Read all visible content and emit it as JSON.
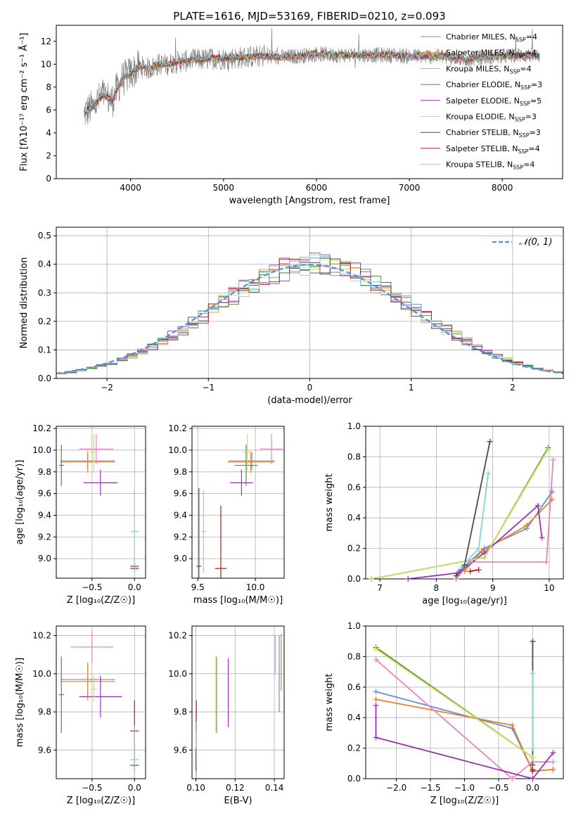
{
  "figure": {
    "title": "PLATE=1616, MJD=53169, FIBERID=0210, z=0.093"
  },
  "models": [
    {
      "name": "Chabrier MILES",
      "nssp": "4",
      "color": "#6a8fd3"
    },
    {
      "name": "Salpeter MILES",
      "nssp": "4",
      "color": "#e9842a"
    },
    {
      "name": "Kroupa MILES",
      "nssp": "4",
      "color": "#e986bf"
    },
    {
      "name": "Chabrier ELODIE",
      "nssp": "3",
      "color": "#4e8f3a"
    },
    {
      "name": "Salpeter ELODIE",
      "nssp": "5",
      "color": "#9a33b3"
    },
    {
      "name": "Kroupa ELODIE",
      "nssp": "3",
      "color": "#c9e35c"
    },
    {
      "name": "Chabrier STELIB",
      "nssp": "3",
      "color": "#4a4a4a"
    },
    {
      "name": "Salpeter STELIB",
      "nssp": "4",
      "color": "#b01e1e"
    },
    {
      "name": "Kroupa STELIB",
      "nssp": "4",
      "color": "#7fd6d6"
    }
  ],
  "chart_data": [
    {
      "id": "spectrum",
      "type": "line",
      "title": "PLATE=1616, MJD=53169, FIBERID=0210, z=0.093",
      "xlabel": "wavelength [Angstrom, rest frame]",
      "ylabel": "Flux [fλ10⁻¹⁷ erg cm⁻² s⁻¹ Å⁻¹]",
      "xlim": [
        3200,
        8650
      ],
      "ylim": [
        0,
        13.4
      ],
      "xticks": [
        4000,
        5000,
        6000,
        7000,
        8000
      ],
      "yticks": [
        0,
        2,
        4,
        6,
        8,
        10,
        12
      ],
      "grid": false,
      "legend": "right",
      "data_color": "#808080",
      "model_color": "#7fd6d6",
      "x": [
        3500,
        3600,
        3700,
        3800,
        3900,
        4000,
        4100,
        4200,
        4300,
        4400,
        4500,
        4600,
        4700,
        4800,
        4900,
        5000,
        5200,
        5400,
        5600,
        5800,
        6000,
        6200,
        6400,
        6600,
        6800,
        7000,
        7200,
        7400,
        7600,
        7800,
        8000,
        8200,
        8400
      ],
      "y": [
        5.7,
        6.3,
        7.3,
        6.8,
        8.6,
        9.2,
        9.8,
        9.6,
        10.0,
        10.0,
        10.2,
        10.3,
        10.4,
        10.4,
        10.5,
        10.5,
        10.6,
        10.7,
        10.6,
        10.7,
        10.9,
        10.8,
        10.8,
        10.8,
        10.8,
        10.7,
        10.7,
        10.7,
        10.4,
        10.6,
        10.7,
        10.8,
        10.7
      ]
    },
    {
      "id": "residuals",
      "type": "line",
      "xlabel": "(data-model)/error",
      "ylabel": "Normed distribution",
      "xlim": [
        -2.5,
        2.5
      ],
      "ylim": [
        0,
        0.53
      ],
      "xticks": [
        -2,
        -1,
        0,
        1,
        2
      ],
      "yticks": [
        0.0,
        0.1,
        0.2,
        0.3,
        0.4,
        0.5
      ],
      "grid": true,
      "legend": "top-right",
      "gauss_label": "𝒩(0, 1)",
      "gauss_color": "#5b8bd6",
      "bin_width": 0.1,
      "x_start": -2.5
    },
    {
      "id": "age_vs_Z",
      "type": "scatter",
      "xlabel": "Z [log₁₀(Z/Z☉)]",
      "ylabel": "age  [log₁₀(age/yr)]",
      "xlim": [
        -0.92,
        0.13
      ],
      "ylim": [
        8.82,
        10.22
      ],
      "xticks": [
        -0.5,
        0.0
      ],
      "yticks": [
        9.0,
        9.2,
        9.4,
        9.6,
        9.8,
        10.0,
        10.2
      ],
      "grid": true,
      "points": [
        {
          "model": 0,
          "x": -0.55,
          "y": 9.9,
          "xerr": 0.32,
          "yerr": 0.08
        },
        {
          "model": 1,
          "x": -0.55,
          "y": 9.89,
          "xerr": 0.32,
          "yerr": 0.1
        },
        {
          "model": 2,
          "x": -0.45,
          "y": 10.01,
          "xerr": 0.2,
          "yerr": 0.14
        },
        {
          "model": 3,
          "x": -0.86,
          "y": 9.86,
          "xerr": 0.03,
          "yerr": 0.19
        },
        {
          "model": 4,
          "x": -0.4,
          "y": 9.7,
          "xerr": 0.2,
          "yerr": 0.12
        },
        {
          "model": 5,
          "x": -0.48,
          "y": 9.98,
          "xerr": 0.04,
          "yerr": 0.17
        },
        {
          "model": 6,
          "x": 0.0,
          "y": 8.93,
          "xerr": 0.05,
          "yerr": 0.03
        },
        {
          "model": 7,
          "x": 0.0,
          "y": 8.91,
          "xerr": 0.05,
          "yerr": 0.02
        },
        {
          "model": 8,
          "x": 0.0,
          "y": 9.25,
          "xerr": 0.05,
          "yerr": 0.38
        }
      ]
    },
    {
      "id": "age_vs_mass",
      "type": "scatter",
      "xlabel": "mass [log₁₀(M/M☉)]",
      "ylabel": "",
      "xlim": [
        9.45,
        10.25
      ],
      "ylim": [
        8.82,
        10.22
      ],
      "xticks": [
        9.5,
        10.0
      ],
      "yticks": [
        9.0,
        9.2,
        9.4,
        9.6,
        9.8,
        10.0,
        10.2
      ],
      "grid": true,
      "points": [
        {
          "model": 0,
          "x": 9.97,
          "y": 9.9,
          "xerr": 0.2,
          "yerr": 0.08
        },
        {
          "model": 1,
          "x": 9.96,
          "y": 9.89,
          "xerr": 0.2,
          "yerr": 0.1
        },
        {
          "model": 2,
          "x": 10.14,
          "y": 10.01,
          "xerr": 0.1,
          "yerr": 0.14
        },
        {
          "model": 3,
          "x": 9.92,
          "y": 9.86,
          "xerr": 0.1,
          "yerr": 0.19
        },
        {
          "model": 4,
          "x": 9.88,
          "y": 9.7,
          "xerr": 0.1,
          "yerr": 0.12
        },
        {
          "model": 5,
          "x": 9.93,
          "y": 9.98,
          "xerr": 0.04,
          "yerr": 0.17
        },
        {
          "model": 6,
          "x": 9.51,
          "y": 8.93,
          "xerr": 0.02,
          "yerr": 0.72
        },
        {
          "model": 7,
          "x": 9.7,
          "y": 8.91,
          "xerr": 0.05,
          "yerr": 0.58
        },
        {
          "model": 8,
          "x": 9.55,
          "y": 9.25,
          "xerr": 0.02,
          "yerr": 0.38
        }
      ]
    },
    {
      "id": "weight_vs_age",
      "type": "line",
      "xlabel": "age  [log₁₀(age/yr)]",
      "ylabel": "mass weight",
      "xlim": [
        6.75,
        10.25
      ],
      "ylim": [
        0,
        1.0
      ],
      "xticks": [
        7,
        8,
        9,
        10
      ],
      "yticks": [
        0.0,
        0.2,
        0.4,
        0.6,
        0.8,
        1.0
      ],
      "grid": true,
      "series": [
        {
          "model": 0,
          "x": [
            8.4,
            8.85,
            9.6,
            10.05
          ],
          "y": [
            0.05,
            0.2,
            0.33,
            0.57
          ]
        },
        {
          "model": 1,
          "x": [
            8.5,
            8.8,
            9.6,
            10.05
          ],
          "y": [
            0.05,
            0.18,
            0.35,
            0.52
          ]
        },
        {
          "model": 2,
          "x": [
            8.35,
            8.6,
            9.95,
            10.07
          ],
          "y": [
            0.0,
            0.11,
            0.11,
            0.78
          ]
        },
        {
          "model": 3,
          "x": [
            6.85,
            8.85,
            9.98
          ],
          "y": [
            0.0,
            0.14,
            0.86
          ]
        },
        {
          "model": 4,
          "x": [
            7.5,
            8.4,
            8.85,
            9.8,
            9.87
          ],
          "y": [
            0.0,
            0.04,
            0.17,
            0.48,
            0.27
          ]
        },
        {
          "model": 5,
          "x": [
            6.85,
            8.85,
            9.98
          ],
          "y": [
            0.0,
            0.14,
            0.85
          ]
        },
        {
          "model": 6,
          "x": [
            8.35,
            8.5,
            8.95
          ],
          "y": [
            0.02,
            0.09,
            0.9
          ]
        },
        {
          "model": 7,
          "x": [
            8.6,
            8.75
          ],
          "y": [
            0.05,
            0.06
          ]
        },
        {
          "model": 8,
          "x": [
            8.45,
            8.75,
            8.92
          ],
          "y": [
            0.08,
            0.2,
            0.69
          ]
        }
      ]
    },
    {
      "id": "mass_vs_Z",
      "type": "scatter",
      "xlabel": "Z [log₁₀(Z/Z☉)]",
      "ylabel": "mass [log₁₀(M/M☉)]",
      "xlim": [
        -0.92,
        0.13
      ],
      "ylim": [
        9.45,
        10.25
      ],
      "xticks": [
        -0.5,
        0.0
      ],
      "yticks": [
        9.6,
        9.8,
        10.0,
        10.2
      ],
      "grid": true,
      "points": [
        {
          "model": 0,
          "x": -0.55,
          "y": 9.97,
          "xerr": 0.32,
          "yerr": 0.08
        },
        {
          "model": 1,
          "x": -0.55,
          "y": 9.96,
          "xerr": 0.32,
          "yerr": 0.1
        },
        {
          "model": 2,
          "x": -0.5,
          "y": 10.14,
          "xerr": 0.25,
          "yerr": 0.08
        },
        {
          "model": 3,
          "x": -0.86,
          "y": 9.89,
          "xerr": 0.03,
          "yerr": 0.2
        },
        {
          "model": 4,
          "x": -0.4,
          "y": 9.88,
          "xerr": 0.25,
          "yerr": 0.11
        },
        {
          "model": 5,
          "x": -0.48,
          "y": 9.92,
          "xerr": 0.04,
          "yerr": 0.07
        },
        {
          "model": 6,
          "x": 0.0,
          "y": 9.52,
          "xerr": 0.05,
          "yerr": 0.03
        },
        {
          "model": 7,
          "x": 0.0,
          "y": 9.7,
          "xerr": 0.05,
          "yerr": 0.16
        },
        {
          "model": 8,
          "x": 0.0,
          "y": 9.55,
          "xerr": 0.05,
          "yerr": 0.18
        }
      ]
    },
    {
      "id": "mass_vs_ebv",
      "type": "scatter",
      "xlabel": "E(B-V)",
      "ylabel": "",
      "xlim": [
        0.098,
        0.145
      ],
      "ylim": [
        9.45,
        10.25
      ],
      "xticks": [
        0.1,
        0.12,
        0.14
      ],
      "yticks": [
        9.6,
        9.8,
        10.0,
        10.2
      ],
      "grid": true,
      "points": [
        {
          "model": 0,
          "x": 0.1425,
          "y": 10.0,
          "xerr": 0,
          "yerr": 0.2
        },
        {
          "model": 1,
          "x": 0.1435,
          "y": 10.06,
          "xerr": 0,
          "yerr": 0.15
        },
        {
          "model": 2,
          "x": 0.1405,
          "y": 10.1,
          "xerr": 0,
          "yerr": 0.1
        },
        {
          "model": 3,
          "x": 0.1105,
          "y": 9.89,
          "xerr": 0,
          "yerr": 0.2
        },
        {
          "model": 4,
          "x": 0.1165,
          "y": 9.9,
          "xerr": 0,
          "yerr": 0.18
        },
        {
          "model": 5,
          "x": 0.1102,
          "y": 9.89,
          "xerr": 0,
          "yerr": 0.2
        },
        {
          "model": 6,
          "x": 0.1,
          "y": 9.55,
          "xerr": 0,
          "yerr": 0.06
        },
        {
          "model": 7,
          "x": 0.1002,
          "y": 9.78,
          "xerr": 0,
          "yerr": 0.08
        },
        {
          "model": 8,
          "x": 0.1003,
          "y": 9.6,
          "xerr": 0,
          "yerr": 0.15
        }
      ]
    },
    {
      "id": "weight_vs_Z",
      "type": "line",
      "xlabel": "Z [log₁₀(Z/Z☉)]",
      "ylabel": "mass weight",
      "xlim": [
        -2.45,
        0.45
      ],
      "ylim": [
        0,
        1.0
      ],
      "xticks": [
        -2.0,
        -1.5,
        -1.0,
        -0.5,
        0.0
      ],
      "yticks": [
        0.0,
        0.2,
        0.4,
        0.6,
        0.8,
        1.0
      ],
      "grid": true,
      "series": [
        {
          "model": 0,
          "x": [
            -2.3,
            -0.3,
            0.0,
            0.3
          ],
          "y": [
            0.57,
            0.33,
            0.05,
            0.06
          ]
        },
        {
          "model": 1,
          "x": [
            -2.3,
            -0.3,
            0.0,
            0.3
          ],
          "y": [
            0.52,
            0.35,
            0.05,
            0.06
          ]
        },
        {
          "model": 2,
          "x": [
            -2.3,
            -0.3,
            0.0,
            0.3
          ],
          "y": [
            0.78,
            0.0,
            0.11,
            0.11
          ]
        },
        {
          "model": 3,
          "x": [
            -2.3,
            0.0
          ],
          "y": [
            0.86,
            0.14
          ]
        },
        {
          "model": 4,
          "x": [
            -2.3,
            -2.3,
            0.0,
            0.3
          ],
          "y": [
            0.48,
            0.27,
            0.0,
            0.17
          ]
        },
        {
          "model": 5,
          "x": [
            -2.3,
            0.0
          ],
          "y": [
            0.85,
            0.14
          ]
        },
        {
          "model": 6,
          "x": [
            0.0,
            0.0
          ],
          "y": [
            0.9,
            0.09
          ]
        },
        {
          "model": 7,
          "x": [
            0.0,
            0.0
          ],
          "y": [
            0.06,
            0.05
          ]
        },
        {
          "model": 8,
          "x": [
            0.0,
            0.0
          ],
          "y": [
            0.69,
            0.2
          ]
        }
      ]
    }
  ]
}
